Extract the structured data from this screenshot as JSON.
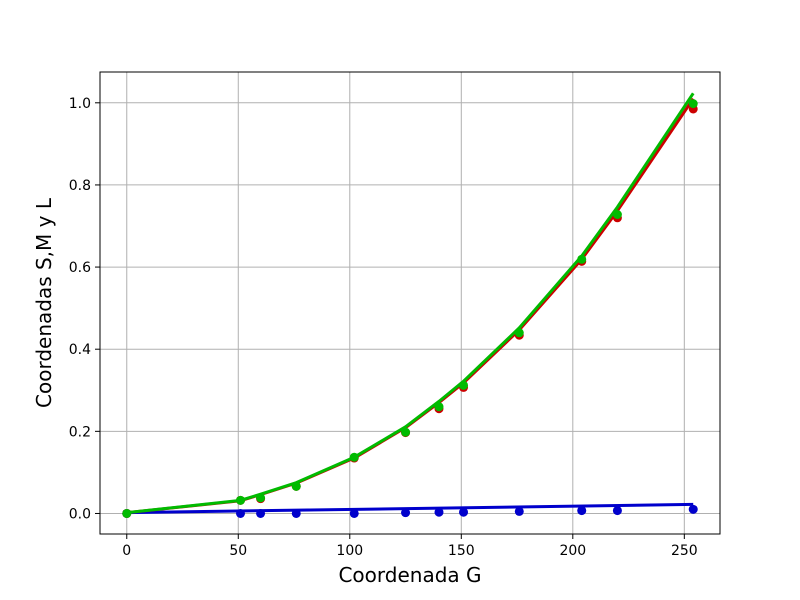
{
  "chart_data": {
    "type": "scatter",
    "title": "",
    "xlabel": "Coordenada G",
    "ylabel": "Coordenadas S,M y L",
    "xlim": [
      -12,
      266
    ],
    "ylim": [
      -0.05,
      1.075
    ],
    "xticks": [
      0,
      50,
      100,
      150,
      200,
      250
    ],
    "yticks": [
      0.0,
      0.2,
      0.4,
      0.6,
      0.8,
      1.0
    ],
    "xtick_labels": [
      "0",
      "50",
      "100",
      "150",
      "200",
      "250"
    ],
    "ytick_labels": [
      "0.0",
      "0.2",
      "0.4",
      "0.6",
      "0.8",
      "1.0"
    ],
    "grid": true,
    "legend": "none",
    "x": [
      0,
      51,
      60,
      76,
      102,
      125,
      140,
      151,
      176,
      204,
      220,
      254
    ],
    "series": [
      {
        "color": "#cc0000",
        "points": [
          0,
          0.032,
          0.036,
          0.066,
          0.135,
          0.197,
          0.255,
          0.307,
          0.434,
          0.614,
          0.72,
          0.985
        ],
        "fit_x": [
          0,
          51,
          60,
          76,
          102,
          125,
          140,
          151,
          176,
          204,
          220,
          254
        ],
        "fit_y": [
          0.002,
          0.031,
          0.046,
          0.074,
          0.135,
          0.209,
          0.27,
          0.318,
          0.447,
          0.619,
          0.737,
          1.01
        ]
      },
      {
        "color": "#00bb00",
        "points": [
          0,
          0.032,
          0.038,
          0.066,
          0.137,
          0.198,
          0.26,
          0.312,
          0.44,
          0.619,
          0.728,
          0.998
        ],
        "fit_x": [
          0,
          51,
          60,
          76,
          102,
          125,
          140,
          151,
          176,
          204,
          220,
          254
        ],
        "fit_y": [
          0.002,
          0.032,
          0.047,
          0.075,
          0.137,
          0.211,
          0.273,
          0.322,
          0.452,
          0.627,
          0.746,
          1.023
        ]
      },
      {
        "color": "#0000cc",
        "points": [
          0,
          0,
          0,
          0,
          0,
          0.002,
          0.003,
          0.003,
          0.005,
          0.007,
          0.007,
          0.01
        ],
        "fit_x": [
          0,
          254
        ],
        "fit_y": [
          0.002,
          0.022
        ]
      }
    ]
  }
}
